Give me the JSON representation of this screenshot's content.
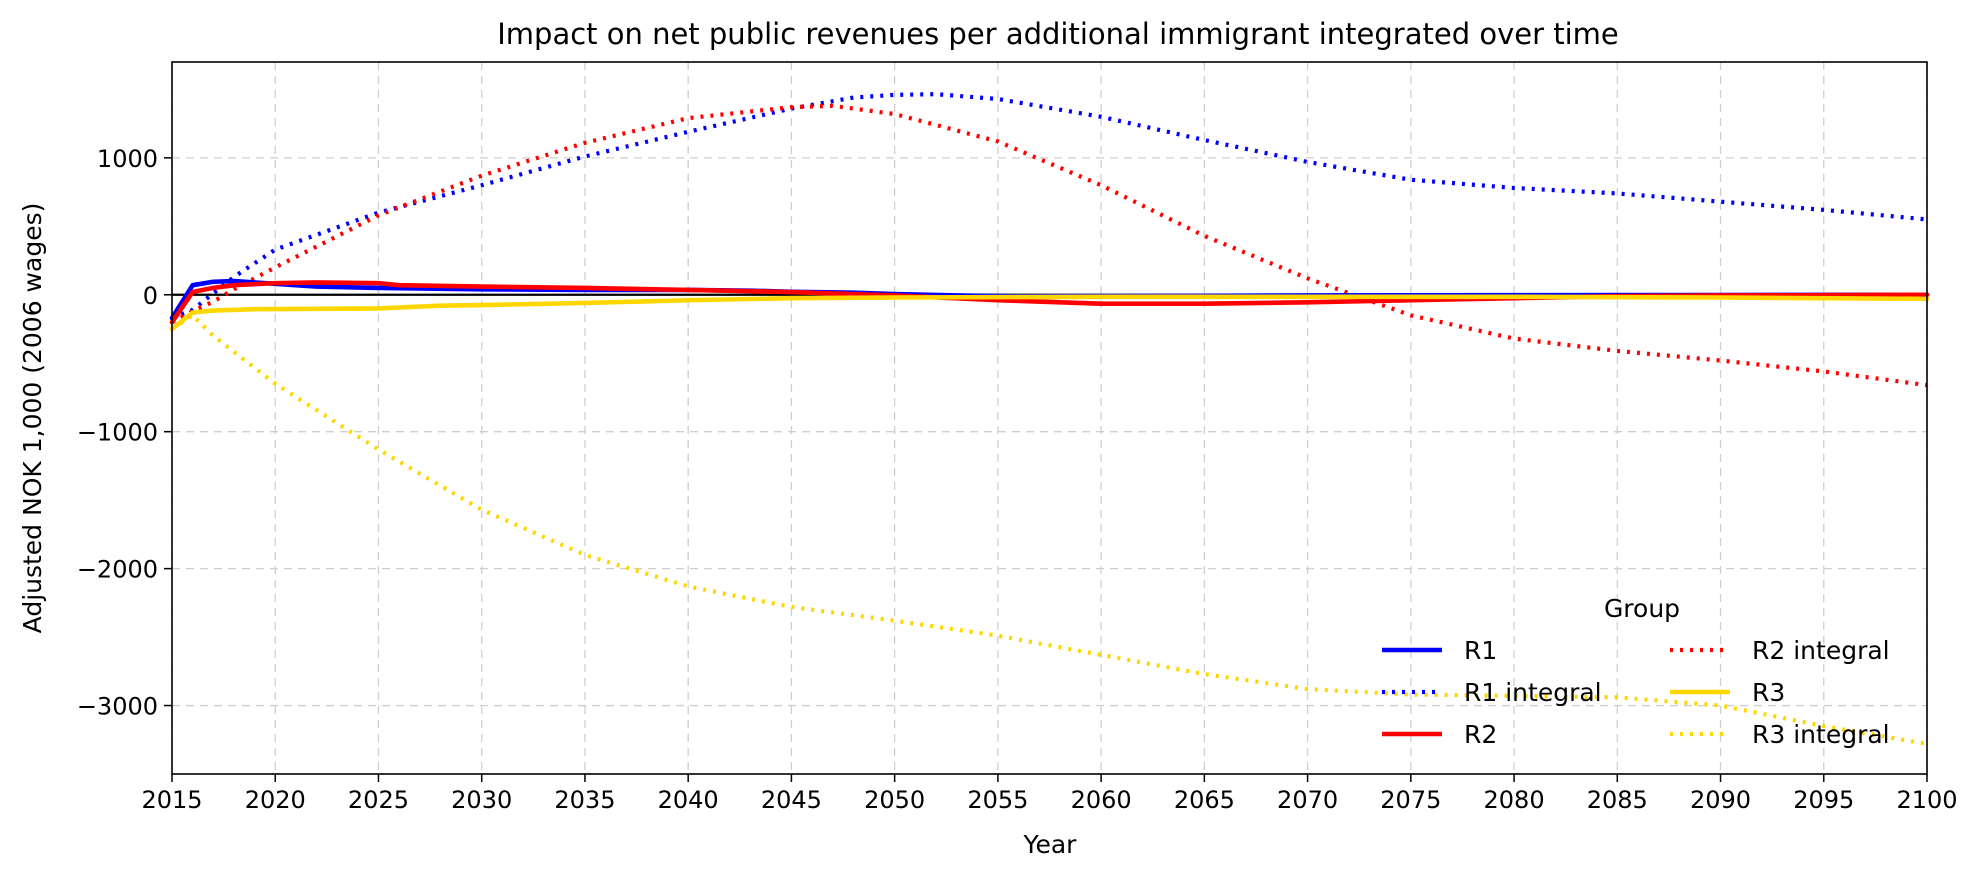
{
  "chart_data": {
    "type": "line",
    "title": "Impact on net public revenues per additional immigrant integrated over time",
    "xlabel": "Year",
    "ylabel": "Adjusted NOK 1,000 (2006 wages)",
    "xlim": [
      2015,
      2100
    ],
    "ylim": [
      -3500,
      1700
    ],
    "x_ticks": [
      "2015",
      "2020",
      "2025",
      "2030",
      "2035",
      "2040",
      "2045",
      "2050",
      "2055",
      "2060",
      "2065",
      "2070",
      "2075",
      "2080",
      "2085",
      "2090",
      "2095",
      "2100"
    ],
    "y_ticks": [
      "1000",
      "0",
      "−1000",
      "−2000",
      "−3000"
    ],
    "y_tick_values": [
      1000,
      0,
      -1000,
      -2000,
      -3000
    ],
    "grid": true,
    "zero_line": true,
    "legend": {
      "title": "Group",
      "placement": "lower-right",
      "columns": 2
    },
    "series": [
      {
        "name": "R1",
        "style": "solid",
        "color": "#0000ff",
        "points": [
          [
            2015,
            -170
          ],
          [
            2016,
            70
          ],
          [
            2017,
            95
          ],
          [
            2018,
            100
          ],
          [
            2020,
            80
          ],
          [
            2022,
            60
          ],
          [
            2025,
            50
          ],
          [
            2030,
            40
          ],
          [
            2035,
            35
          ],
          [
            2040,
            35
          ],
          [
            2043,
            30
          ],
          [
            2045,
            22
          ],
          [
            2048,
            15
          ],
          [
            2050,
            5
          ],
          [
            2053,
            -5
          ],
          [
            2056,
            -12
          ],
          [
            2060,
            -10
          ],
          [
            2070,
            -5
          ],
          [
            2080,
            -3
          ],
          [
            2090,
            -2
          ],
          [
            2100,
            0
          ]
        ]
      },
      {
        "name": "R1 integral",
        "style": "dotted",
        "color": "#0000ff",
        "points": [
          [
            2015,
            -170
          ],
          [
            2016,
            -110
          ],
          [
            2017,
            10
          ],
          [
            2018,
            130
          ],
          [
            2019,
            230
          ],
          [
            2020,
            330
          ],
          [
            2025,
            600
          ],
          [
            2030,
            800
          ],
          [
            2035,
            1010
          ],
          [
            2040,
            1190
          ],
          [
            2045,
            1360
          ],
          [
            2048,
            1440
          ],
          [
            2050,
            1460
          ],
          [
            2052,
            1465
          ],
          [
            2055,
            1430
          ],
          [
            2060,
            1300
          ],
          [
            2065,
            1130
          ],
          [
            2070,
            970
          ],
          [
            2075,
            840
          ],
          [
            2080,
            780
          ],
          [
            2085,
            740
          ],
          [
            2090,
            680
          ],
          [
            2095,
            620
          ],
          [
            2100,
            550
          ]
        ]
      },
      {
        "name": "R2",
        "style": "solid",
        "color": "#ff0000",
        "points": [
          [
            2015,
            -200
          ],
          [
            2016,
            20
          ],
          [
            2017,
            50
          ],
          [
            2018,
            70
          ],
          [
            2020,
            85
          ],
          [
            2022,
            90
          ],
          [
            2025,
            85
          ],
          [
            2026,
            70
          ],
          [
            2030,
            60
          ],
          [
            2035,
            50
          ],
          [
            2040,
            35
          ],
          [
            2045,
            20
          ],
          [
            2050,
            -5
          ],
          [
            2055,
            -40
          ],
          [
            2060,
            -65
          ],
          [
            2065,
            -65
          ],
          [
            2070,
            -55
          ],
          [
            2075,
            -40
          ],
          [
            2080,
            -25
          ],
          [
            2085,
            -10
          ],
          [
            2090,
            -5
          ],
          [
            2100,
            0
          ]
        ]
      },
      {
        "name": "R2 integral",
        "style": "dotted",
        "color": "#ff0000",
        "points": [
          [
            2015,
            -200
          ],
          [
            2016,
            -120
          ],
          [
            2017,
            -50
          ],
          [
            2018,
            40
          ],
          [
            2020,
            200
          ],
          [
            2025,
            580
          ],
          [
            2030,
            870
          ],
          [
            2035,
            1110
          ],
          [
            2040,
            1290
          ],
          [
            2045,
            1370
          ],
          [
            2047,
            1380
          ],
          [
            2050,
            1320
          ],
          [
            2055,
            1120
          ],
          [
            2060,
            800
          ],
          [
            2065,
            430
          ],
          [
            2070,
            120
          ],
          [
            2075,
            -150
          ],
          [
            2080,
            -320
          ],
          [
            2085,
            -410
          ],
          [
            2090,
            -480
          ],
          [
            2095,
            -560
          ],
          [
            2100,
            -660
          ]
        ]
      },
      {
        "name": "R3",
        "style": "solid",
        "color": "#ffd700",
        "points": [
          [
            2015,
            -250
          ],
          [
            2016,
            -130
          ],
          [
            2017,
            -115
          ],
          [
            2019,
            -105
          ],
          [
            2025,
            -100
          ],
          [
            2028,
            -80
          ],
          [
            2030,
            -75
          ],
          [
            2035,
            -60
          ],
          [
            2040,
            -40
          ],
          [
            2045,
            -25
          ],
          [
            2050,
            -20
          ],
          [
            2060,
            -15
          ],
          [
            2070,
            -15
          ],
          [
            2080,
            -15
          ],
          [
            2090,
            -20
          ],
          [
            2100,
            -30
          ]
        ]
      },
      {
        "name": "R3 integral",
        "style": "dotted",
        "color": "#ffd700",
        "points": [
          [
            2015,
            -250
          ],
          [
            2016,
            -150
          ],
          [
            2017,
            -300
          ],
          [
            2020,
            -650
          ],
          [
            2025,
            -1130
          ],
          [
            2030,
            -1570
          ],
          [
            2035,
            -1900
          ],
          [
            2040,
            -2130
          ],
          [
            2045,
            -2280
          ],
          [
            2050,
            -2380
          ],
          [
            2055,
            -2490
          ],
          [
            2060,
            -2630
          ],
          [
            2065,
            -2770
          ],
          [
            2070,
            -2880
          ],
          [
            2075,
            -2920
          ],
          [
            2080,
            -2930
          ],
          [
            2085,
            -2940
          ],
          [
            2090,
            -3000
          ],
          [
            2095,
            -3150
          ],
          [
            2100,
            -3280
          ]
        ]
      }
    ]
  }
}
